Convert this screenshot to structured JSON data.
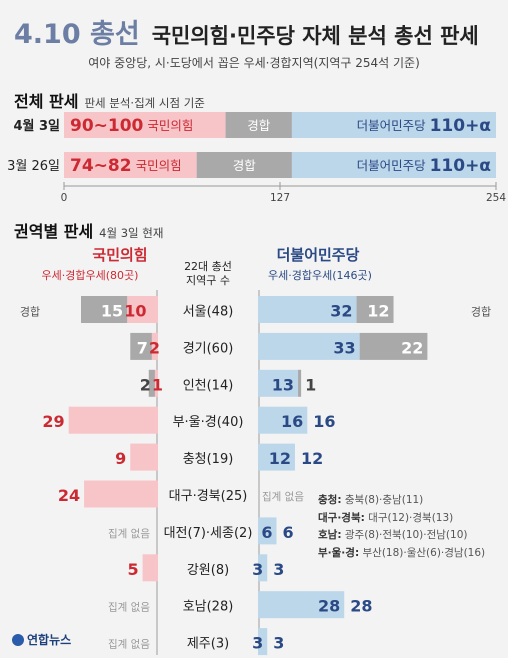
{
  "header": {
    "date": "4.10 총선",
    "title": "국민의힘·민주당 자체 분석 총선 판세",
    "subtitle": "여야 중앙당, 시·도당에서 꼽은 우세·경합지역(지역구 254석 기준)"
  },
  "overall": {
    "title": "전체 판세",
    "note": "판세 분석·집계 시점 기준",
    "rows": [
      {
        "date": "4월 3일",
        "ppp_label": "90~100",
        "ppp_party": "국민의힘",
        "toss_label": "경합",
        "dp_party": "더불어민주당",
        "dp_label": "110+α"
      },
      {
        "date": "3월 26일",
        "ppp_label": "74~82",
        "ppp_party": "국민의힘",
        "toss_label": "경합",
        "dp_party": "더불어민주당",
        "dp_label": "110+α"
      }
    ],
    "axis_ticks": [
      "0",
      "127",
      "254"
    ]
  },
  "regional": {
    "title": "권역별 판세",
    "note": "4월 3일 현재",
    "ppp_header": "국민의힘",
    "ppp_sub": "우세·경합우세(80곳)",
    "center_header_1": "22대 총선",
    "center_header_2": "지역구 수",
    "dp_header": "더불어민주당",
    "dp_sub": "우세·경합우세(146곳)",
    "toss_word": "경합",
    "no_data": "집계 없음"
  },
  "notes": [
    {
      "key": "충청:",
      "text": " 충북(8)·충남(11)"
    },
    {
      "key": "대구·경북:",
      "text": " 대구(12)·경북(13)"
    },
    {
      "key": "호남:",
      "text": " 광주(8)·전북(10)·전남(10)"
    },
    {
      "key": "부·울·경:",
      "text": " 부산(18)·울산(6)·경남(16)"
    }
  ],
  "logo": "연합뉴스",
  "colors": {
    "ppp": "#f7c4c8",
    "ppp_text": "#cc2a33",
    "dp": "#bcd6ea",
    "dp_text": "#2b4a85",
    "toss": "#a9a9a9"
  },
  "chart_data": [
    {
      "type": "bar",
      "title": "전체 판세",
      "categories": [
        "4월 3일",
        "3월 26일"
      ],
      "series": [
        {
          "name": "국민의힘",
          "values": [
            95,
            78
          ]
        },
        {
          "name": "경합",
          "values": [
            39,
            56
          ]
        },
        {
          "name": "더불어민주당",
          "values": [
            120,
            120
          ]
        }
      ],
      "xlim": [
        0,
        254
      ],
      "stacked": true
    },
    {
      "type": "bar",
      "title": "권역별 판세",
      "categories": [
        "서울(48)",
        "경기(60)",
        "인천(14)",
        "부·울·경(40)",
        "충청(19)",
        "대구·경북(25)",
        "대전(7)·세종(2)",
        "강원(8)",
        "호남(28)",
        "제주(3)"
      ],
      "series": [
        {
          "name": "국민의힘",
          "values": [
            10,
            2,
            1,
            29,
            9,
            24,
            null,
            5,
            null,
            null
          ]
        },
        {
          "name": "국민의힘 경합",
          "values": [
            15,
            7,
            2,
            null,
            null,
            null,
            null,
            null,
            null,
            null
          ]
        },
        {
          "name": "더불어민주당",
          "values": [
            32,
            33,
            13,
            16,
            12,
            null,
            6,
            3,
            28,
            3
          ]
        },
        {
          "name": "더불어민주당 경합",
          "values": [
            12,
            22,
            1,
            null,
            null,
            null,
            null,
            null,
            null,
            null
          ]
        }
      ]
    }
  ]
}
